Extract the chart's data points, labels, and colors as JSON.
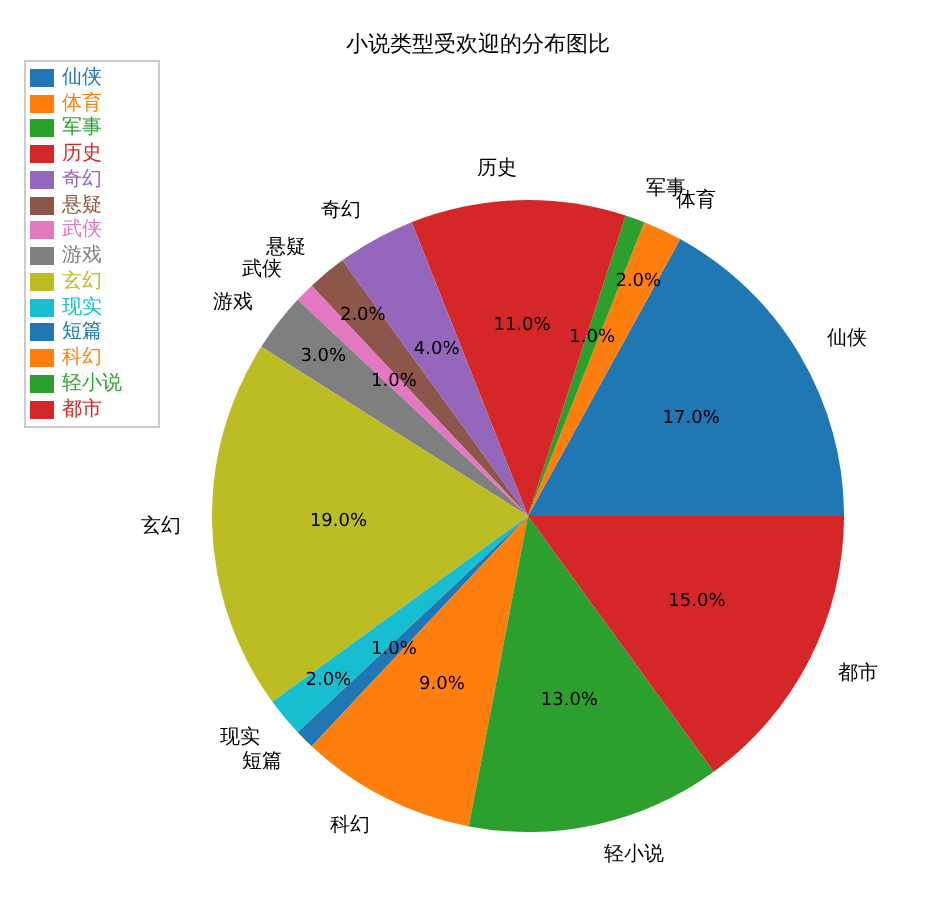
{
  "chart_data": {
    "type": "pie",
    "title": "小说类型受欢迎的分布图比",
    "categories": [
      "仙侠",
      "体育",
      "军事",
      "历史",
      "奇幻",
      "悬疑",
      "武侠",
      "游戏",
      "玄幻",
      "现实",
      "短篇",
      "科幻",
      "轻小说",
      "都市"
    ],
    "values": [
      17,
      2,
      1,
      11,
      4,
      2,
      1,
      3,
      19,
      2,
      1,
      9,
      13,
      15
    ],
    "value_labels": [
      "17.0%",
      "2.0%",
      "1.0%",
      "11.0%",
      "4.0%",
      "2.0%",
      "1.0%",
      "3.0%",
      "19.0%",
      "2.0%",
      "1.0%",
      "9.0%",
      "13.0%",
      "15.0%"
    ],
    "colors": [
      "#1f77b4",
      "#ff7f0e",
      "#2ca02c",
      "#d62728",
      "#9467bd",
      "#8c564b",
      "#e377c2",
      "#7f7f7f",
      "#bcbd22",
      "#17becf",
      "#1f77b4",
      "#ff7f0e",
      "#2ca02c",
      "#d62728"
    ],
    "legend": "top left"
  }
}
